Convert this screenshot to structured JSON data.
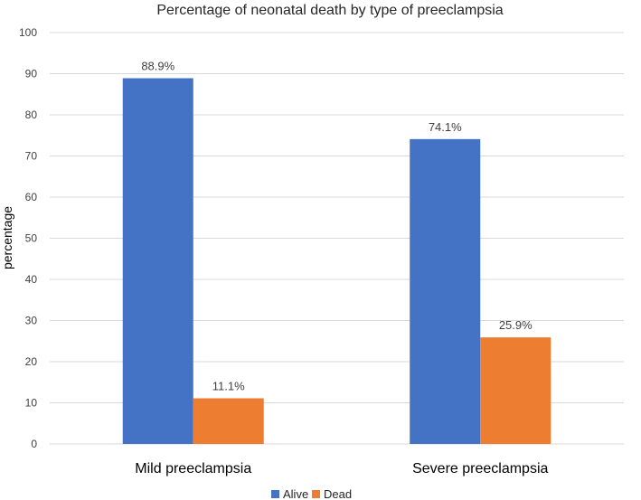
{
  "chart_data": {
    "type": "bar",
    "title": "Percentage of neonatal death by type of preeclampsia",
    "xlabel": "",
    "ylabel": "percentage",
    "ylim": [
      0,
      100
    ],
    "yticks": [
      0,
      10,
      20,
      30,
      40,
      50,
      60,
      70,
      80,
      90,
      100
    ],
    "grid": true,
    "legend_position": "bottom",
    "categories": [
      "Mild preeclampsia",
      "Severe preeclampsia"
    ],
    "series": [
      {
        "name": "Alive",
        "color": "#4472c4",
        "values": [
          88.9,
          74.1
        ],
        "labels": [
          "88.9%",
          "74.1%"
        ]
      },
      {
        "name": "Dead",
        "color": "#ed7d31",
        "values": [
          11.1,
          25.9
        ],
        "labels": [
          "11.1%",
          "25.9%"
        ]
      }
    ]
  }
}
